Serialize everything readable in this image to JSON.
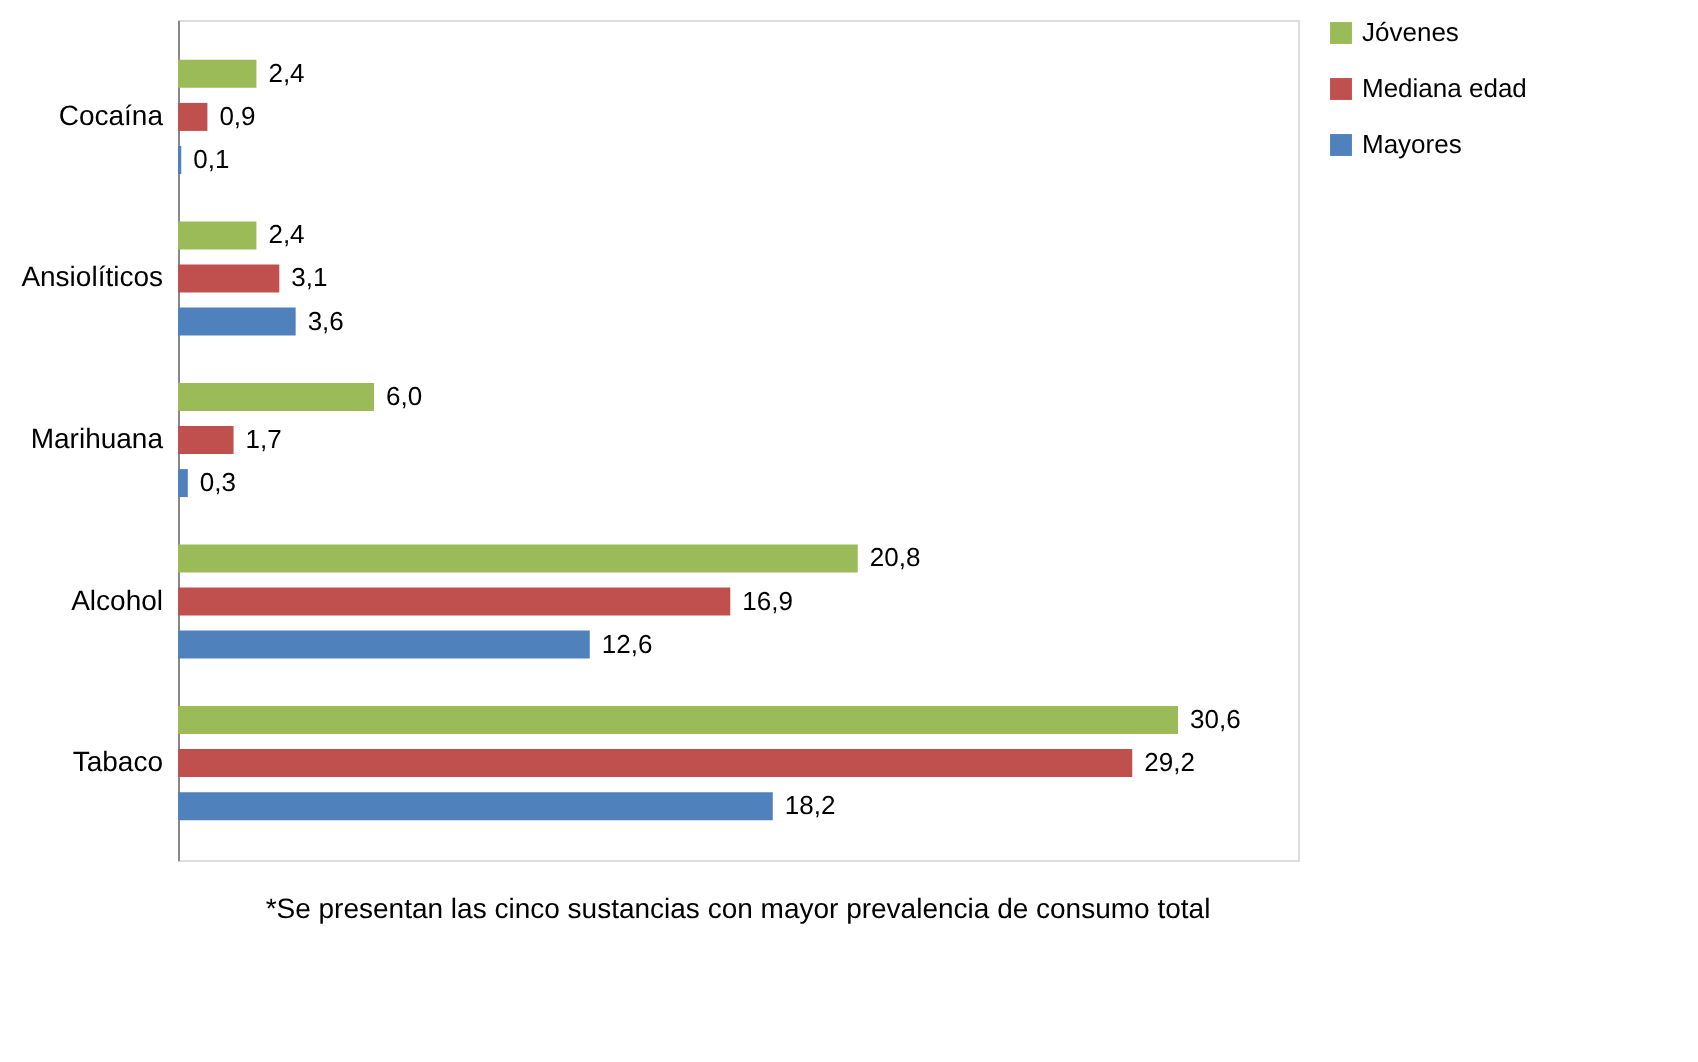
{
  "chart_data": {
    "type": "bar",
    "orientation": "horizontal",
    "legend": "right",
    "grid": false,
    "categories": [
      "Cocaína",
      "Ansiolíticos",
      "Marihuana",
      "Alcohol",
      "Tabaco"
    ],
    "series": [
      {
        "name": "Jóvenes",
        "color": "#9bbb59",
        "values": [
          2.4,
          2.4,
          6.0,
          20.8,
          30.6
        ],
        "value_labels": [
          "2,4",
          "2,4",
          "6,0",
          "20,8",
          "30,6"
        ]
      },
      {
        "name": "Mediana edad",
        "color": "#c0504d",
        "values": [
          0.9,
          3.1,
          1.7,
          16.9,
          29.2
        ],
        "value_labels": [
          "0,9",
          "3,1",
          "1,7",
          "16,9",
          "29,2"
        ]
      },
      {
        "name": "Mayores",
        "color": "#4f81bd",
        "values": [
          0.1,
          3.6,
          0.3,
          12.6,
          18.2
        ],
        "value_labels": [
          "0,1",
          "3,6",
          "0,3",
          "12,6",
          "18,2"
        ]
      }
    ],
    "annotations": [
      "*Se presentan las cinco sustancias con mayor prevalencia de consumo total"
    ]
  }
}
